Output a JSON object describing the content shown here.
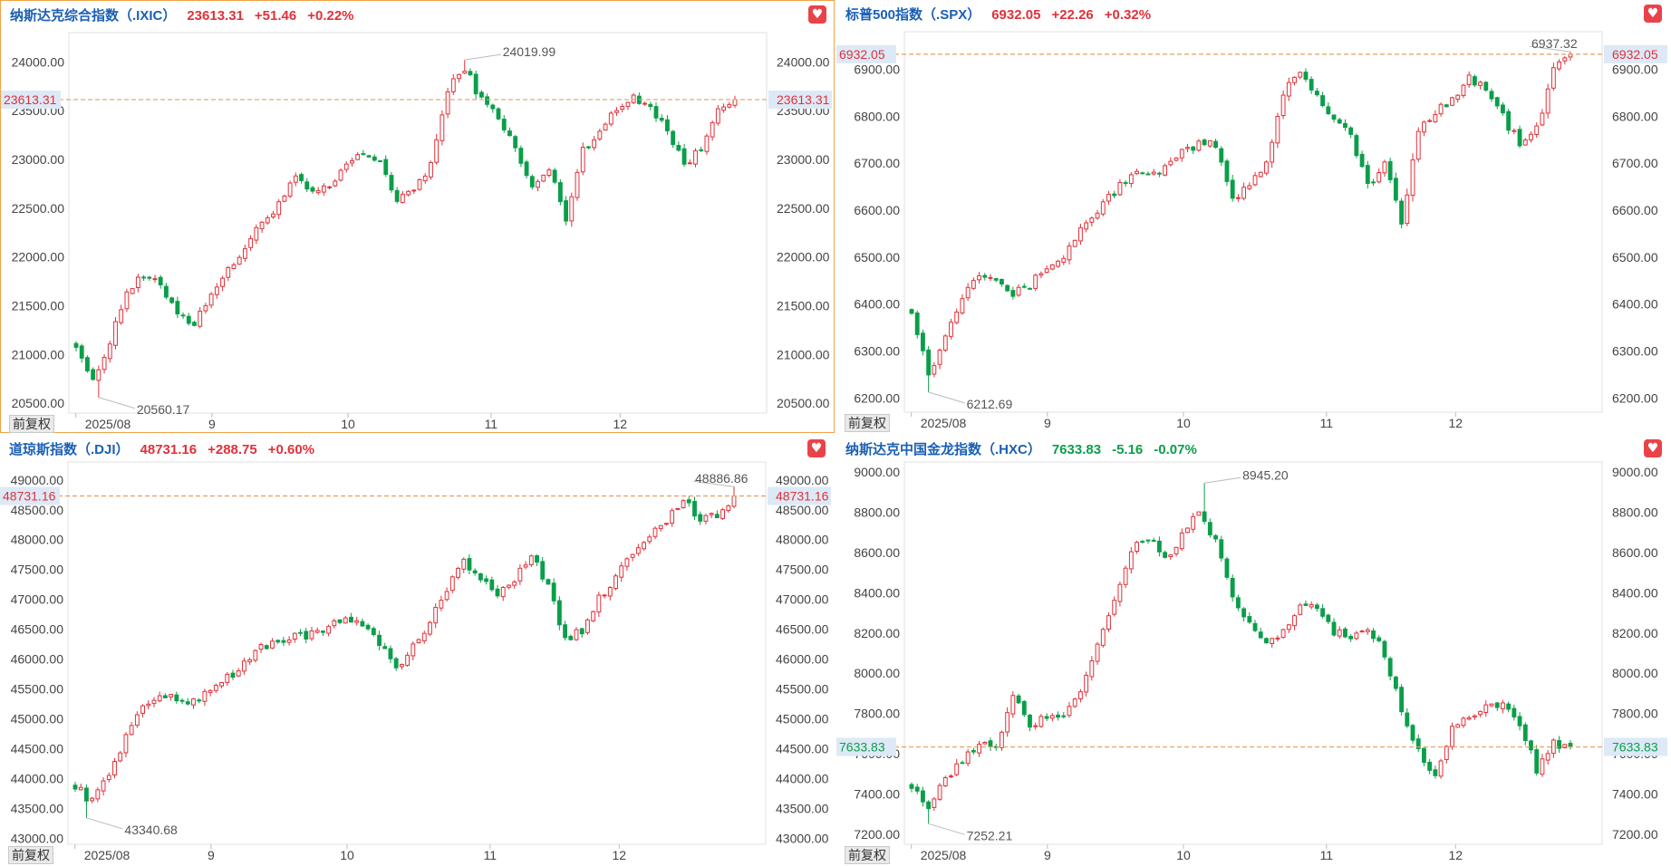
{
  "adj_label": "前复权",
  "colors": {
    "up": "#e0313a",
    "down": "#0b9e4a",
    "name": "#1a5fb4",
    "guide": "#e0a060",
    "tag_bg": "#dde9f6"
  },
  "icons": {
    "favorite": "heart-icon"
  },
  "panels": [
    {
      "name": "纳斯达克综合指数（.IXIC）",
      "value": "23613.31",
      "change": "+51.46",
      "pct": "+0.22%",
      "direction": "up",
      "price_tag": "23613.31",
      "max_label": "24019.99",
      "min_label": "20560.17",
      "y_ticks": [
        "24000.00",
        "23500.00",
        "23000.00",
        "22500.00",
        "22000.00",
        "21500.00",
        "21000.00",
        "20500.00"
      ],
      "x_ticks": [
        "2025/08",
        "9",
        "10",
        "11",
        "12"
      ]
    },
    {
      "name": "标普500指数（.SPX）",
      "value": "6932.05",
      "change": "+22.26",
      "pct": "+0.32%",
      "direction": "up",
      "price_tag": "6932.05",
      "max_label": "6937.32",
      "min_label": "6212.69",
      "y_ticks": [
        "6900.00",
        "6800.00",
        "6700.00",
        "6600.00",
        "6500.00",
        "6400.00",
        "6300.00",
        "6200.00"
      ],
      "x_ticks": [
        "2025/08",
        "9",
        "10",
        "11",
        "12"
      ]
    },
    {
      "name": "道琼斯指数（.DJI）",
      "value": "48731.16",
      "change": "+288.75",
      "pct": "+0.60%",
      "direction": "up",
      "price_tag": "48731.16",
      "max_label": "48886.86",
      "min_label": "43340.68",
      "y_ticks": [
        "49000.00",
        "48500.00",
        "48000.00",
        "47500.00",
        "47000.00",
        "46500.00",
        "46000.00",
        "45500.00",
        "45000.00",
        "44500.00",
        "44000.00",
        "43500.00",
        "43000.00"
      ],
      "x_ticks": [
        "2025/08",
        "9",
        "10",
        "11",
        "12"
      ]
    },
    {
      "name": "纳斯达克中国金龙指数（.HXC）",
      "value": "7633.83",
      "change": "-5.16",
      "pct": "-0.07%",
      "direction": "down",
      "price_tag": "7633.83",
      "max_label": "8945.20",
      "min_label": "7252.21",
      "y_ticks": [
        "9000.00",
        "8800.00",
        "8600.00",
        "8400.00",
        "8200.00",
        "8000.00",
        "7800.00",
        "7600.00",
        "7400.00",
        "7200.00"
      ],
      "x_ticks": [
        "2025/08",
        "9",
        "10",
        "11",
        "12"
      ]
    }
  ],
  "chart_data": [
    {
      "type": "candlestick",
      "title": "纳斯达克综合指数（.IXIC）",
      "ylim": [
        20400,
        24300
      ],
      "x": [
        "2025/08",
        "9",
        "10",
        "11",
        "12"
      ],
      "close_path": [
        21120,
        20700,
        21150,
        21650,
        21800,
        21700,
        21450,
        21300,
        21650,
        21850,
        22100,
        22350,
        22550,
        22800,
        22650,
        22700,
        22950,
        23050,
        23000,
        22550,
        22700,
        22950,
        23700,
        23950,
        23600,
        23450,
        23100,
        22700,
        22900,
        22400,
        23100,
        23300,
        23500,
        23650,
        23550,
        23300,
        22950,
        23100,
        23560,
        23613.31
      ],
      "last_close": 23613.31,
      "high": 24019.99,
      "low": 20560.17,
      "grid": false
    },
    {
      "type": "candlestick",
      "title": "标普500指数（.SPX）",
      "ylim": [
        6170,
        6980
      ],
      "x": [
        "2025/08",
        "9",
        "10",
        "11",
        "12"
      ],
      "close_path": [
        6390,
        6250,
        6330,
        6420,
        6470,
        6460,
        6420,
        6440,
        6480,
        6500,
        6560,
        6600,
        6640,
        6680,
        6670,
        6690,
        6720,
        6740,
        6740,
        6620,
        6660,
        6700,
        6850,
        6900,
        6840,
        6800,
        6760,
        6650,
        6700,
        6570,
        6770,
        6810,
        6840,
        6880,
        6860,
        6800,
        6740,
        6770,
        6900,
        6932.05
      ],
      "last_close": 6932.05,
      "high": 6937.32,
      "low": 6212.69,
      "grid": false
    },
    {
      "type": "candlestick",
      "title": "道琼斯指数（.DJI）",
      "ylim": [
        42900,
        49300
      ],
      "x": [
        "2025/08",
        "9",
        "10",
        "11",
        "12"
      ],
      "close_path": [
        43900,
        43600,
        44100,
        44700,
        45200,
        45400,
        45300,
        45300,
        45500,
        45700,
        45900,
        46200,
        46300,
        46400,
        46400,
        46500,
        46700,
        46600,
        46300,
        45800,
        46200,
        46600,
        47200,
        47700,
        47300,
        47100,
        47300,
        47800,
        47200,
        46300,
        46500,
        47000,
        47400,
        47800,
        48100,
        48300,
        48700,
        48300,
        48400,
        48731.16
      ],
      "last_close": 48731.16,
      "high": 48886.86,
      "low": 43340.68,
      "grid": false
    },
    {
      "type": "candlestick",
      "title": "纳斯达克中国金龙指数（.HXC）",
      "ylim": [
        7150,
        9050
      ],
      "x": [
        "2025/08",
        "9",
        "10",
        "11",
        "12"
      ],
      "close_path": [
        7450,
        7330,
        7470,
        7560,
        7660,
        7620,
        7880,
        7740,
        7780,
        7800,
        7920,
        8150,
        8350,
        8620,
        8680,
        8560,
        8680,
        8800,
        8650,
        8360,
        8250,
        8150,
        8200,
        8340,
        8320,
        8200,
        8180,
        8230,
        8100,
        7820,
        7620,
        7480,
        7740,
        7780,
        7820,
        7840,
        7760,
        7520,
        7650,
        7633.83
      ],
      "last_close": 7633.83,
      "high": 8945.2,
      "low": 7252.21,
      "grid": false
    }
  ]
}
